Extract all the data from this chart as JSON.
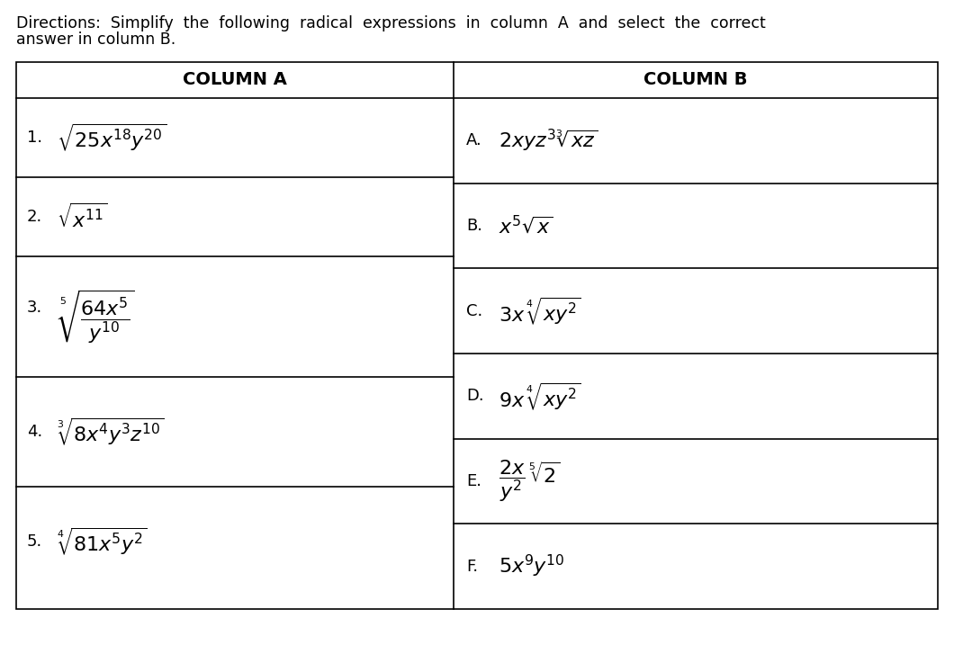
{
  "title_line1": "Directions:  Simplify  the  following  radical  expressions  in  column  A  and  select  the  correct",
  "title_line2": "answer in column B.",
  "title_fontsize": 12.5,
  "background_color": "#ffffff",
  "table_border_color": "#000000",
  "col_a_header": "COLUMN A",
  "col_b_header": "COLUMN B",
  "col_a_items": [
    {
      "num": "1.",
      "expr": "$\\sqrt{25x^{18}y^{20}}$",
      "fontsize": 16
    },
    {
      "num": "2.",
      "expr": "$\\sqrt{x^{11}}$",
      "fontsize": 16
    },
    {
      "num": "3.",
      "expr": "$\\sqrt[5]{\\dfrac{64x^{5}}{y^{10}}}$",
      "fontsize": 16
    },
    {
      "num": "4.",
      "expr": "$\\sqrt[3]{8x^{4}y^{3}z^{10}}$",
      "fontsize": 16
    },
    {
      "num": "5.",
      "expr": "$\\sqrt[4]{81x^{5}y^{2}}$",
      "fontsize": 16
    }
  ],
  "col_b_items": [
    {
      "label": "A.",
      "expr": "$2xyz^{3}\\sqrt[3]{xz}$",
      "fontsize": 16
    },
    {
      "label": "B.",
      "expr": "$x^{5}\\sqrt{x}$",
      "fontsize": 16
    },
    {
      "label": "C.",
      "expr": "$3x\\,\\sqrt[4]{xy^{2}}$",
      "fontsize": 16
    },
    {
      "label": "D.",
      "expr": "$9x\\,\\sqrt[4]{xy^{2}}$",
      "fontsize": 16
    },
    {
      "label": "E.",
      "expr": "$\\dfrac{2x}{y^{2}}\\,\\sqrt[5]{2}$",
      "fontsize": 16
    },
    {
      "label": "F.",
      "expr": "$5x^{9}y^{10}$",
      "fontsize": 16
    }
  ],
  "figsize": [
    10.6,
    7.17
  ],
  "dpi": 100
}
